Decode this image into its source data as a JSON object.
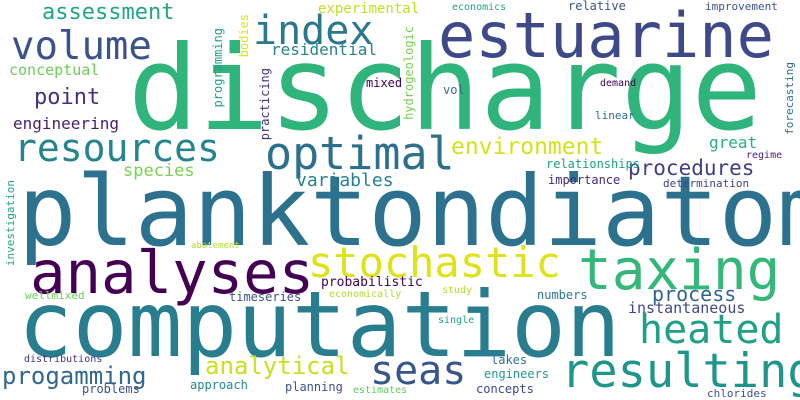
{
  "words": [
    {
      "text": "discharge",
      "color": "#2fb47c"
    },
    {
      "text": "planktondiatom",
      "color": "#2c728e"
    },
    {
      "text": "computation",
      "color": "#287d8e"
    },
    {
      "text": "estuarine",
      "color": "#3e4989"
    },
    {
      "text": "analyses",
      "color": "#440154"
    },
    {
      "text": "taxing",
      "color": "#35b779"
    },
    {
      "text": "stochastic",
      "color": "#dde318"
    },
    {
      "text": "resulting",
      "color": "#1f968b"
    },
    {
      "text": "optimal",
      "color": "#2d708e"
    },
    {
      "text": "heated",
      "color": "#1fa188"
    },
    {
      "text": "resources",
      "color": "#25858e"
    },
    {
      "text": "volume",
      "color": "#3b528b"
    },
    {
      "text": "index",
      "color": "#2a788e"
    },
    {
      "text": "seas",
      "color": "#39568c"
    },
    {
      "text": "analytical",
      "color": "#c8e020"
    },
    {
      "text": "environment",
      "color": "#d2e21b"
    },
    {
      "text": "progamming",
      "color": "#31688e"
    },
    {
      "text": "procedures",
      "color": "#433e85"
    },
    {
      "text": "process",
      "color": "#33638d"
    },
    {
      "text": "assessment",
      "color": "#22a785"
    },
    {
      "text": "point",
      "color": "#46327e"
    },
    {
      "text": "variables",
      "color": "#26828e"
    },
    {
      "text": "species",
      "color": "#7ad151"
    },
    {
      "text": "instantaneous",
      "color": "#3e4989"
    },
    {
      "text": "engineering",
      "color": "#481f70"
    },
    {
      "text": "residential",
      "color": "#26828e"
    },
    {
      "text": "conceptual",
      "color": "#6ece58"
    },
    {
      "text": "great",
      "color": "#29af7f"
    },
    {
      "text": "experimental",
      "color": "#c2df23"
    },
    {
      "text": "relationships",
      "color": "#1f9e89"
    },
    {
      "text": "importance",
      "color": "#482878"
    },
    {
      "text": "determination",
      "color": "#414487"
    },
    {
      "text": "probabilistic",
      "color": "#440154"
    },
    {
      "text": "timeseries",
      "color": "#3b528b"
    },
    {
      "text": "numbers",
      "color": "#2a788e"
    },
    {
      "text": "approach",
      "color": "#238a8d"
    },
    {
      "text": "planning",
      "color": "#3b528b"
    },
    {
      "text": "concepts",
      "color": "#3e4989"
    },
    {
      "text": "engineers",
      "color": "#1f988b"
    },
    {
      "text": "problems",
      "color": "#3b528b"
    },
    {
      "text": "lakes",
      "color": "#2c728e"
    },
    {
      "text": "wellmixed",
      "color": "#6ece58"
    },
    {
      "text": "mixed",
      "color": "#440154"
    },
    {
      "text": "vol",
      "color": "#2d708e"
    },
    {
      "text": "relative",
      "color": "#3b528b"
    },
    {
      "text": "improvement",
      "color": "#3b528b"
    },
    {
      "text": "economics",
      "color": "#20a486"
    },
    {
      "text": "demand",
      "color": "#440154"
    },
    {
      "text": "linear",
      "color": "#2c728e"
    },
    {
      "text": "regime",
      "color": "#481f70"
    },
    {
      "text": "chlorides",
      "color": "#3b528b"
    },
    {
      "text": "distributions",
      "color": "#46327e"
    },
    {
      "text": "estimates",
      "color": "#5ec962"
    },
    {
      "text": "study",
      "color": "#b5de2b"
    },
    {
      "text": "economically",
      "color": "#addc30"
    },
    {
      "text": "single",
      "color": "#1fa188"
    },
    {
      "text": "abatement",
      "color": "#b5de2b"
    },
    {
      "text": "bodies",
      "color": "#dde318"
    },
    {
      "text": "programming",
      "color": "#1fa188"
    },
    {
      "text": "practicing",
      "color": "#46327e"
    },
    {
      "text": "hydrogeologic",
      "color": "#7ad151"
    },
    {
      "text": "forecasting",
      "color": "#2c728e"
    },
    {
      "text": "investigation",
      "color": "#22a785"
    }
  ]
}
